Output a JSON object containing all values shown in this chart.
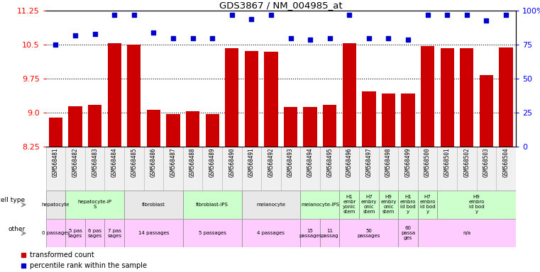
{
  "title": "GDS3867 / NM_004985_at",
  "bar_values": [
    8.9,
    9.15,
    9.17,
    10.53,
    10.5,
    9.07,
    8.97,
    9.03,
    8.97,
    10.42,
    10.36,
    10.35,
    9.13,
    9.13,
    9.18,
    10.53,
    9.47,
    9.42,
    9.42,
    10.48,
    10.42,
    10.42,
    9.83,
    10.45
  ],
  "pct_vals": [
    75,
    82,
    83,
    97,
    97,
    84,
    80,
    80,
    80,
    97,
    94,
    97,
    80,
    79,
    80,
    97,
    80,
    80,
    79,
    97,
    97,
    97,
    93,
    97
  ],
  "sample_labels": [
    "GSM568481",
    "GSM568482",
    "GSM568483",
    "GSM568484",
    "GSM568485",
    "GSM568486",
    "GSM568487",
    "GSM568488",
    "GSM568489",
    "GSM568490",
    "GSM568491",
    "GSM568492",
    "GSM568493",
    "GSM568494",
    "GSM568495",
    "GSM568496",
    "GSM568497",
    "GSM568498",
    "GSM568499",
    "GSM568500",
    "GSM568501",
    "GSM568502",
    "GSM568503",
    "GSM568504"
  ],
  "ylim": [
    8.25,
    11.25
  ],
  "yticks": [
    8.25,
    9.0,
    9.75,
    10.5,
    11.25
  ],
  "right_yticks": [
    0,
    25,
    50,
    75,
    100
  ],
  "bar_color": "#cc0000",
  "dot_color": "#0000cc",
  "cell_groups": [
    {
      "label": "hepatocyte",
      "start": 0,
      "end": 1,
      "color": "#e8e8e8"
    },
    {
      "label": "hepatocyte-iP\nS",
      "start": 1,
      "end": 4,
      "color": "#ccffcc"
    },
    {
      "label": "fibroblast",
      "start": 4,
      "end": 7,
      "color": "#e8e8e8"
    },
    {
      "label": "fibroblast-IPS",
      "start": 7,
      "end": 10,
      "color": "#ccffcc"
    },
    {
      "label": "melanocyte",
      "start": 10,
      "end": 13,
      "color": "#e8e8e8"
    },
    {
      "label": "melanocyte-IPS",
      "start": 13,
      "end": 15,
      "color": "#ccffcc"
    },
    {
      "label": "H1\nembr\nyonic\nstem",
      "start": 15,
      "end": 16,
      "color": "#ccffcc"
    },
    {
      "label": "H7\nembry\nonic\nstem",
      "start": 16,
      "end": 17,
      "color": "#ccffcc"
    },
    {
      "label": "H9\nembry\nonic\nstem",
      "start": 17,
      "end": 18,
      "color": "#ccffcc"
    },
    {
      "label": "H1\nembro\nid bod\ny",
      "start": 18,
      "end": 19,
      "color": "#ccffcc"
    },
    {
      "label": "H7\nembro\nid bod\ny",
      "start": 19,
      "end": 20,
      "color": "#ccffcc"
    },
    {
      "label": "H9\nembro\nid bod\ny",
      "start": 20,
      "end": 24,
      "color": "#ccffcc"
    }
  ],
  "other_groups": [
    {
      "label": "0 passages",
      "start": 0,
      "end": 1,
      "color": "#ffccff"
    },
    {
      "label": "5 pas\nsages",
      "start": 1,
      "end": 2,
      "color": "#ffccff"
    },
    {
      "label": "6 pas\nsages",
      "start": 2,
      "end": 3,
      "color": "#ffccff"
    },
    {
      "label": "7 pas\nsages",
      "start": 3,
      "end": 4,
      "color": "#ffccff"
    },
    {
      "label": "14 passages",
      "start": 4,
      "end": 7,
      "color": "#ffccff"
    },
    {
      "label": "5 passages",
      "start": 7,
      "end": 10,
      "color": "#ffccff"
    },
    {
      "label": "4 passages",
      "start": 10,
      "end": 13,
      "color": "#ffccff"
    },
    {
      "label": "15\npassages",
      "start": 13,
      "end": 14,
      "color": "#ffccff"
    },
    {
      "label": "11\npassag",
      "start": 14,
      "end": 15,
      "color": "#ffccff"
    },
    {
      "label": "50\npassages",
      "start": 15,
      "end": 18,
      "color": "#ffccff"
    },
    {
      "label": "60\npassa\nges",
      "start": 18,
      "end": 19,
      "color": "#ffccff"
    },
    {
      "label": "n/a",
      "start": 19,
      "end": 24,
      "color": "#ffccff"
    }
  ]
}
